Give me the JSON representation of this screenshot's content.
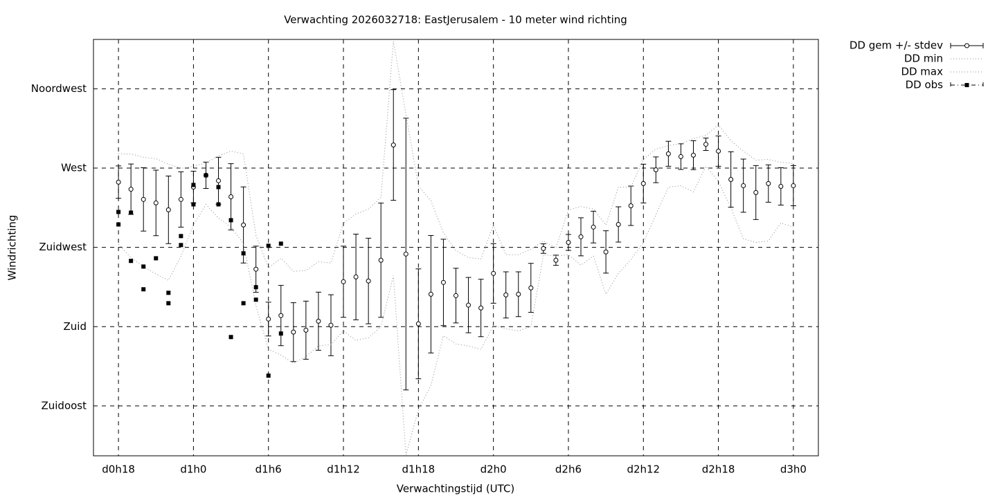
{
  "chart_data": {
    "type": "errorbar",
    "title": "Verwachting 2026032718: EastJerusalem - 10 meter wind richting",
    "x_label": "Verwachtingstijd (UTC)",
    "y_label": "Windrichting",
    "xlim": [
      16,
      74
    ],
    "ylim": [
      106.7,
      343
    ],
    "xticks": [
      {
        "value": 18,
        "label": "d0h18"
      },
      {
        "value": 24,
        "label": "d1h0"
      },
      {
        "value": 30,
        "label": "d1h6"
      },
      {
        "value": 36,
        "label": "d1h12"
      },
      {
        "value": 42,
        "label": "d1h18"
      },
      {
        "value": 48,
        "label": "d2h0"
      },
      {
        "value": 54,
        "label": "d2h6"
      },
      {
        "value": 60,
        "label": "d2h12"
      },
      {
        "value": 66,
        "label": "d2h18"
      },
      {
        "value": 72,
        "label": "d3h0"
      }
    ],
    "yticks": [
      {
        "value": 135,
        "label": "Zuidoost"
      },
      {
        "value": 180,
        "label": "Zuid"
      },
      {
        "value": 225,
        "label": "Zuidwest"
      },
      {
        "value": 270,
        "label": "West"
      },
      {
        "value": 315,
        "label": "Noordwest"
      }
    ],
    "grid": true,
    "legend": "outside-top-right",
    "x": [
      18,
      19,
      20,
      21,
      22,
      23,
      24,
      25,
      26,
      27,
      28,
      29,
      30,
      31,
      32,
      33,
      34,
      35,
      36,
      37,
      38,
      39,
      40,
      41,
      42,
      43,
      44,
      45,
      46,
      47,
      48,
      49,
      50,
      51,
      52,
      53,
      54,
      55,
      56,
      57,
      58,
      59,
      60,
      61,
      62,
      63,
      64,
      65,
      66,
      67,
      68,
      69,
      70,
      71,
      72
    ],
    "series": [
      {
        "name": "DD gem +/- stdev",
        "style": "errorbar",
        "color": "#000000",
        "values": [
          262.0,
          258.0,
          252.2,
          250.2,
          246.3,
          252.2,
          259.2,
          265.9,
          262.8,
          253.7,
          237.7,
          212.6,
          184.3,
          186.3,
          176.9,
          178.0,
          183.1,
          180.8,
          205.5,
          208.2,
          205.9,
          217.7,
          283.1,
          221.2,
          181.6,
          198.4,
          205.1,
          197.6,
          192.2,
          190.6,
          210.2,
          198.0,
          198.4,
          202.0,
          224.3,
          217.7,
          227.8,
          231.0,
          236.5,
          222.4,
          238.0,
          248.6,
          261.2,
          269.0,
          278.1,
          276.5,
          277.3,
          283.5,
          279.6,
          263.5,
          260.0,
          256.1,
          261.2,
          259.6,
          260.0
        ],
        "errors": [
          9.2,
          14.3,
          18.0,
          18.6,
          19.2,
          15.7,
          9.0,
          7.5,
          13.3,
          18.8,
          21.6,
          13.1,
          9.6,
          17.1,
          16.7,
          16.5,
          16.5,
          17.3,
          20.2,
          24.3,
          24.3,
          32.4,
          31.4,
          77.1,
          31.2,
          33.3,
          24.5,
          15.5,
          15.7,
          16.3,
          16.9,
          13.1,
          12.7,
          13.9,
          2.7,
          2.9,
          4.5,
          10.8,
          9.0,
          12.0,
          10.0,
          11.2,
          11.0,
          7.3,
          7.1,
          7.3,
          8.2,
          3.5,
          8.6,
          15.7,
          15.1,
          15.3,
          10.6,
          10.6,
          11.4
        ]
      },
      {
        "name": "DD min",
        "style": "dotted",
        "color": "#888888",
        "values": [
          226.7,
          219.2,
          214.1,
          209.8,
          206.3,
          220.0,
          237.7,
          249.4,
          241.6,
          236.5,
          227.1,
          191.8,
          167.1,
          163.9,
          159.2,
          163.1,
          169.0,
          169.8,
          177.6,
          172.2,
          173.7,
          180.0,
          209.0,
          107.1,
          132.9,
          146.7,
          174.9,
          170.2,
          169.0,
          167.1,
          180.8,
          178.8,
          177.6,
          180.0,
          220.8,
          220.0,
          220.8,
          214.9,
          220.0,
          198.4,
          210.2,
          218.0,
          227.8,
          243.5,
          259.2,
          260.0,
          256.5,
          271.0,
          262.4,
          247.5,
          229.8,
          227.8,
          228.6,
          238.8,
          236.5
        ]
      },
      {
        "name": "DD max",
        "style": "dotted",
        "color": "#888888",
        "values": [
          278.0,
          278.0,
          276.1,
          275.3,
          272.2,
          269.8,
          271.0,
          273.0,
          276.9,
          279.6,
          278.0,
          231.8,
          213.3,
          218.8,
          211.4,
          211.8,
          216.9,
          216.1,
          238.8,
          243.9,
          246.7,
          253.3,
          342,
          300.4,
          260.0,
          251.4,
          233.3,
          223.1,
          219.2,
          218.4,
          237.7,
          220.8,
          220.8,
          223.9,
          228.6,
          224.7,
          246.3,
          248.2,
          246.7,
          237.7,
          259.2,
          259.2,
          274.9,
          280.8,
          282.8,
          283.9,
          286.7,
          288.6,
          294.5,
          285.5,
          279.6,
          274.5,
          274.9,
          273.3,
          272.6
        ]
      },
      {
        "name": "DD obs",
        "style": "points",
        "color": "#000000",
        "x": [
          18,
          18,
          19,
          19,
          20,
          20,
          21,
          22,
          22,
          23,
          23,
          24,
          24,
          25,
          26,
          26,
          27,
          27,
          28,
          28,
          29,
          29,
          30,
          30,
          31,
          31
        ],
        "values": [
          245.1,
          238.0,
          244.7,
          217.3,
          214.1,
          201.2,
          218.8,
          199.2,
          193.3,
          231.4,
          226.3,
          260.4,
          249.4,
          265.9,
          259.2,
          249.4,
          240.4,
          174.1,
          221.6,
          193.3,
          202.4,
          195.3,
          225.9,
          152.2,
          227.1,
          176.1
        ]
      }
    ]
  }
}
